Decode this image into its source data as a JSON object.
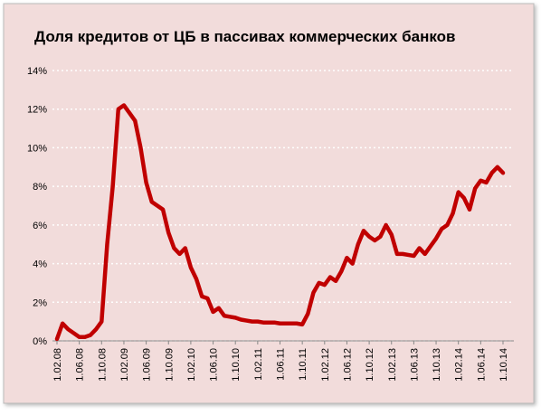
{
  "chart_data": {
    "type": "line",
    "title": "Доля кредитов  от ЦБ в пассивах коммерческих банков",
    "categories": [
      "1.02.08",
      null,
      null,
      null,
      "1.06.08",
      null,
      null,
      null,
      "1.10.08",
      null,
      null,
      null,
      "1.02.09",
      null,
      null,
      null,
      "1.06.09",
      null,
      null,
      null,
      "1.10.09",
      null,
      null,
      null,
      "1.02.10",
      null,
      null,
      null,
      "1.06.10",
      null,
      null,
      null,
      "1.10.10",
      null,
      null,
      null,
      "1.02.11",
      null,
      null,
      null,
      "1.06.11",
      null,
      null,
      null,
      "1.10.11",
      null,
      null,
      null,
      "1.02.12",
      null,
      null,
      null,
      "1.06.12",
      null,
      null,
      null,
      "1.10.12",
      null,
      null,
      null,
      "1.02.13",
      null,
      null,
      null,
      "1.06.13",
      null,
      null,
      null,
      "1.10.13",
      null,
      null,
      null,
      "1.02.14",
      null,
      null,
      null,
      "1.06.14",
      null,
      null,
      null,
      "1.10.14"
    ],
    "values": [
      0.1,
      0.9,
      0.6,
      0.4,
      0.2,
      0.2,
      0.3,
      0.6,
      1.0,
      5.0,
      8.0,
      12.0,
      12.2,
      11.8,
      11.4,
      10.0,
      8.2,
      7.2,
      7.0,
      6.8,
      5.6,
      4.8,
      4.5,
      4.8,
      3.8,
      3.2,
      2.3,
      2.2,
      1.5,
      1.7,
      1.3,
      1.25,
      1.2,
      1.1,
      1.05,
      1.0,
      1.0,
      0.95,
      0.95,
      0.95,
      0.9,
      0.9,
      0.9,
      0.9,
      0.85,
      1.4,
      2.5,
      3.0,
      2.9,
      3.3,
      3.1,
      3.6,
      4.3,
      4.0,
      5.0,
      5.7,
      5.4,
      5.2,
      5.4,
      6.0,
      5.5,
      4.5,
      4.5,
      4.45,
      4.4,
      4.8,
      4.5,
      4.9,
      5.3,
      5.8,
      6.0,
      6.6,
      7.7,
      7.4,
      6.8,
      7.9,
      8.3,
      8.2,
      8.7,
      9.0,
      8.7
    ],
    "color": "#c00000",
    "ylim": [
      0,
      14
    ],
    "yticks": [
      {
        "value": 0,
        "label": "0%"
      },
      {
        "value": 2,
        "label": "2%"
      },
      {
        "value": 4,
        "label": "4%"
      },
      {
        "value": 6,
        "label": "6%"
      },
      {
        "value": 8,
        "label": "8%"
      },
      {
        "value": 10,
        "label": "10%"
      },
      {
        "value": 12,
        "label": "12%"
      },
      {
        "value": 14,
        "label": "14%"
      }
    ],
    "grid": true
  }
}
